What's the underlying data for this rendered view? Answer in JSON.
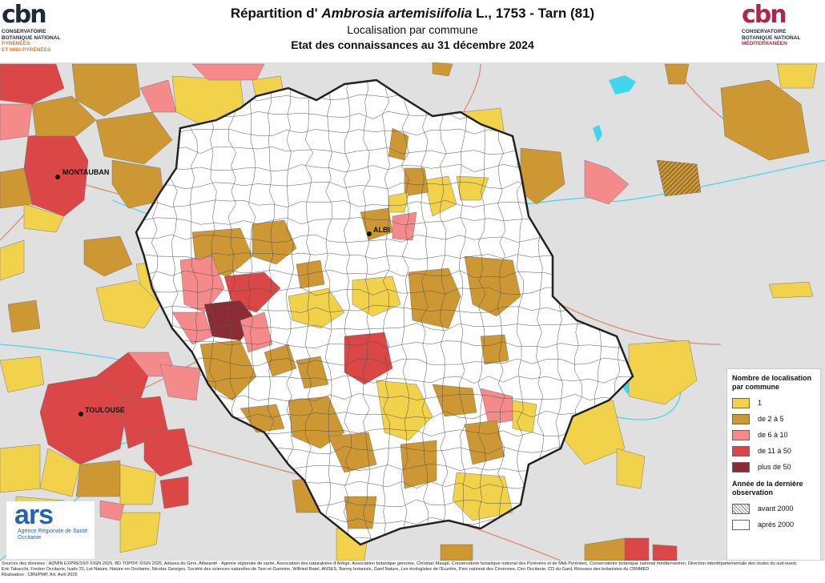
{
  "title": {
    "prefix": "Répartition d' ",
    "species": "Ambrosia artemisiifolia",
    "suffix": " L., 1753 - Tarn (81)",
    "subtitle": "Localisation par commune",
    "date_line": "Etat des connaissances au 31 décembre 2024"
  },
  "logo_left": {
    "mark": "cbn",
    "line1": "CONSERVATOIRE",
    "line2": "BOTANIQUE NATIONAL",
    "line3": "PYRÉNÉES",
    "line4": "ET MIDI-PYRÉNÉES"
  },
  "logo_right": {
    "mark": "cbn",
    "line1": "CONSERVATOIRE",
    "line2": "BOTANIQUE NATIONAL",
    "line3": "MÉDITERRANÉEN"
  },
  "cities": [
    "MONTAUBAN",
    "ALBI",
    "TOULOUSE"
  ],
  "legend": {
    "title1": "Nombre de localisation",
    "title2": "par commune",
    "classes": [
      {
        "label": "1",
        "color": "#f2d24a"
      },
      {
        "label": "de 2 à 5",
        "color": "#cd9733"
      },
      {
        "label": "de 6 à 10",
        "color": "#f58a8a"
      },
      {
        "label": "de 11 à 50",
        "color": "#db4646"
      },
      {
        "label": "plus de 50",
        "color": "#8a2c34"
      }
    ],
    "year_title1": "Année de la dernière",
    "year_title2": "observation",
    "years": [
      {
        "label": "avant 2000"
      },
      {
        "label": "après 2000"
      }
    ]
  },
  "ars_logo": {
    "mark": "ars",
    "line1": "Agence Régionale de Santé",
    "line2": "Occitanie"
  },
  "sources": "Sources des données : ADMIN EXPRESS® ©IGN 2025, BD TOPO® ©IGN 2025, Adasea du Gers, Atlasanté - Agence régionale de santé, Association des naturalistes d'Ariège, Association botanique gersoise, Christian Maugé, Conservatoire botanique national des Pyrénées et de Midi-Pyrénées, Conservatoire botanique national méditerranéen, Direction interdépartementale des routes du sud-ouest, Eric Tabacchi, Fredon Occitanie, Isatis 31, Lot Nature, Nature en Occitanie, Nicolas Georges, Société des sciences naturelles de Tarn et Garonne, Wilfried Ratel, ANSES, Barmy botanists, Gard Nature, Les écologistes de l'Euzière, Parc national des Cévennes, Cen Occitanie, CD du Gard, Réseaux des botanistes du CBNMED",
  "realisation": "Réalisation : CBN/PMP, Art. Avril 2025",
  "colors": {
    "background": "#e0e0e0",
    "tarn_fill": "#ffffff",
    "border": "#222222",
    "water": "#40d6f0",
    "road": "#d98b72"
  }
}
